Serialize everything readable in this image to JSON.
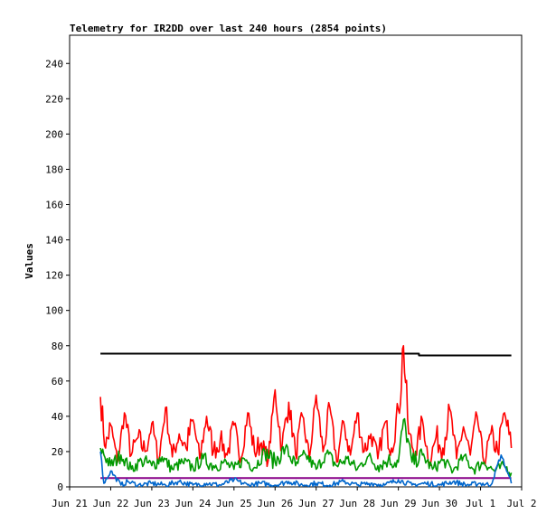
{
  "chart_data": {
    "type": "line",
    "title": "Telemetry for IR2DD over last 240 hours (2854 points)",
    "xlabel": "",
    "ylabel": "Values",
    "xlim": [
      "2024-06-21",
      "2024-07-02"
    ],
    "ylim": [
      0,
      256
    ],
    "x_ticks": [
      {
        "date": "2024-06-21",
        "label": "Jun 21"
      },
      {
        "date": "2024-06-22",
        "label": "Jun 22"
      },
      {
        "date": "2024-06-23",
        "label": "Jun 23"
      },
      {
        "date": "2024-06-24",
        "label": "Jun 24"
      },
      {
        "date": "2024-06-25",
        "label": "Jun 25"
      },
      {
        "date": "2024-06-26",
        "label": "Jun 26"
      },
      {
        "date": "2024-06-27",
        "label": "Jun 27"
      },
      {
        "date": "2024-06-28",
        "label": "Jun 28"
      },
      {
        "date": "2024-06-29",
        "label": "Jun 29"
      },
      {
        "date": "2024-06-30",
        "label": "Jun 30"
      },
      {
        "date": "2024-07-01",
        "label": "Jul 1"
      },
      {
        "date": "2024-07-02",
        "label": "Jul 2"
      }
    ],
    "y_ticks": [
      0,
      20,
      40,
      60,
      80,
      100,
      120,
      140,
      160,
      180,
      200,
      220,
      240
    ],
    "grid": false,
    "legend": "none",
    "series": [
      {
        "color": "#000000",
        "x": [
          "2024-06-21T18:00",
          "2024-06-29T12:00",
          "2024-06-29T12:00",
          "2024-07-01T18:00"
        ],
        "values": [
          75.5,
          75.5,
          74.5,
          74.5
        ]
      },
      {
        "color": "#880088",
        "x": [
          "2024-06-21T18:00",
          "2024-07-01T18:00"
        ],
        "values": [
          5,
          5
        ]
      },
      {
        "color": "#ff0000",
        "x": [
          "2024-06-21T18:00",
          "2024-06-21T21:00",
          "2024-06-22T00:00",
          "2024-06-22T04:00",
          "2024-06-22T08:00",
          "2024-06-22T12:00",
          "2024-06-22T16:00",
          "2024-06-22T20:00",
          "2024-06-23T00:00",
          "2024-06-23T04:00",
          "2024-06-23T08:00",
          "2024-06-23T12:00",
          "2024-06-23T16:00",
          "2024-06-23T20:00",
          "2024-06-24T00:00",
          "2024-06-24T04:00",
          "2024-06-24T08:00",
          "2024-06-24T12:00",
          "2024-06-24T16:00",
          "2024-06-24T20:00",
          "2024-06-25T00:00",
          "2024-06-25T04:00",
          "2024-06-25T08:00",
          "2024-06-25T12:00",
          "2024-06-25T16:00",
          "2024-06-25T20:00",
          "2024-06-26T00:00",
          "2024-06-26T04:00",
          "2024-06-26T08:00",
          "2024-06-26T12:00",
          "2024-06-26T16:00",
          "2024-06-26T20:00",
          "2024-06-27T00:00",
          "2024-06-27T04:00",
          "2024-06-27T08:00",
          "2024-06-27T12:00",
          "2024-06-27T16:00",
          "2024-06-27T20:00",
          "2024-06-28T00:00",
          "2024-06-28T04:00",
          "2024-06-28T08:00",
          "2024-06-28T12:00",
          "2024-06-28T16:00",
          "2024-06-28T20:00",
          "2024-06-29T00:00",
          "2024-06-29T03:00",
          "2024-06-29T06:00",
          "2024-06-29T10:00",
          "2024-06-29T14:00",
          "2024-06-29T18:00",
          "2024-06-29T22:00",
          "2024-06-30T02:00",
          "2024-06-30T06:00",
          "2024-06-30T10:00",
          "2024-06-30T14:00",
          "2024-06-30T18:00",
          "2024-06-30T22:00",
          "2024-07-01T02:00",
          "2024-07-01T06:00",
          "2024-07-01T10:00",
          "2024-07-01T14:00",
          "2024-07-01T18:00"
        ],
        "values": [
          51,
          22,
          35,
          14,
          42,
          18,
          28,
          20,
          36,
          15,
          45,
          17,
          30,
          22,
          38,
          16,
          40,
          20,
          27,
          18,
          35,
          16,
          42,
          20,
          25,
          15,
          55,
          22,
          48,
          18,
          40,
          16,
          52,
          20,
          45,
          14,
          37,
          18,
          42,
          20,
          30,
          16,
          36,
          22,
          44,
          80,
          30,
          18,
          38,
          14,
          28,
          22,
          44,
          16,
          34,
          18,
          40,
          14,
          30,
          20,
          42,
          22
        ]
      },
      {
        "color": "#009900",
        "x": [
          "2024-06-21T18:00",
          "2024-06-22T00:00",
          "2024-06-22T06:00",
          "2024-06-22T12:00",
          "2024-06-22T18:00",
          "2024-06-23T00:00",
          "2024-06-23T06:00",
          "2024-06-23T12:00",
          "2024-06-23T18:00",
          "2024-06-24T00:00",
          "2024-06-24T06:00",
          "2024-06-24T12:00",
          "2024-06-24T18:00",
          "2024-06-25T00:00",
          "2024-06-25T06:00",
          "2024-06-25T12:00",
          "2024-06-25T18:00",
          "2024-06-26T00:00",
          "2024-06-26T06:00",
          "2024-06-26T12:00",
          "2024-06-26T18:00",
          "2024-06-27T00:00",
          "2024-06-27T06:00",
          "2024-06-27T12:00",
          "2024-06-27T18:00",
          "2024-06-28T00:00",
          "2024-06-28T06:00",
          "2024-06-28T12:00",
          "2024-06-28T18:00",
          "2024-06-29T00:00",
          "2024-06-29T03:00",
          "2024-06-29T08:00",
          "2024-06-29T14:00",
          "2024-06-29T20:00",
          "2024-06-30T02:00",
          "2024-06-30T08:00",
          "2024-06-30T14:00",
          "2024-06-30T20:00",
          "2024-07-01T02:00",
          "2024-07-01T08:00",
          "2024-07-01T14:00",
          "2024-07-01T18:00"
        ],
        "values": [
          22,
          12,
          18,
          10,
          15,
          12,
          17,
          10,
          14,
          11,
          16,
          12,
          14,
          10,
          16,
          11,
          20,
          14,
          22,
          12,
          18,
          10,
          19,
          12,
          16,
          10,
          17,
          12,
          15,
          14,
          38,
          14,
          18,
          10,
          15,
          9,
          17,
          10,
          14,
          9,
          12,
          8
        ]
      },
      {
        "color": "#0066cc",
        "x": [
          "2024-06-21T18:00",
          "2024-06-21T20:00",
          "2024-06-22T00:00",
          "2024-06-22T06:00",
          "2024-06-22T10:00",
          "2024-06-22T16:00",
          "2024-06-23T00:00",
          "2024-06-23T08:00",
          "2024-06-23T16:00",
          "2024-06-24T00:00",
          "2024-06-24T08:00",
          "2024-06-24T16:00",
          "2024-06-25T00:00",
          "2024-06-25T08:00",
          "2024-06-25T16:00",
          "2024-06-26T00:00",
          "2024-06-26T08:00",
          "2024-06-26T16:00",
          "2024-06-27T00:00",
          "2024-06-27T08:00",
          "2024-06-27T16:00",
          "2024-06-28T00:00",
          "2024-06-28T08:00",
          "2024-06-28T16:00",
          "2024-06-29T00:00",
          "2024-06-29T08:00",
          "2024-06-29T16:00",
          "2024-06-30T00:00",
          "2024-06-30T08:00",
          "2024-06-30T16:00",
          "2024-07-01T00:00",
          "2024-07-01T06:00",
          "2024-07-01T12:00",
          "2024-07-01T18:00"
        ],
        "values": [
          20,
          2,
          9,
          1,
          3,
          1,
          2,
          1,
          3,
          1,
          2,
          1,
          4,
          1,
          2,
          1,
          3,
          1,
          2,
          1,
          3,
          1,
          2,
          1,
          4,
          1,
          2,
          1,
          3,
          1,
          2,
          1,
          18,
          2
        ]
      }
    ]
  }
}
